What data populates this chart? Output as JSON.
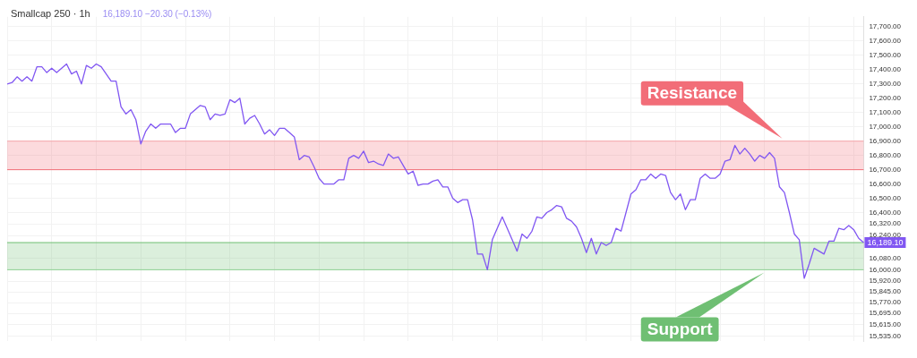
{
  "chart_data": {
    "type": "line",
    "title": "Smallcap 250 · 1h",
    "subtitle": "16,189.10 −20.30 (−0.13%)",
    "categories": [
      null,
      null,
      null,
      null,
      null,
      null,
      null,
      null,
      null,
      null,
      null,
      null,
      null,
      null,
      null,
      null,
      null,
      null,
      null,
      null,
      null,
      null,
      null,
      null,
      null,
      null,
      null,
      null,
      null,
      null,
      null,
      null,
      null,
      null,
      null,
      null,
      null,
      null,
      null,
      null,
      null,
      null,
      null,
      null,
      null,
      null,
      null,
      null,
      null,
      null,
      null,
      null,
      null,
      null,
      null,
      null,
      null,
      null,
      null,
      null,
      null,
      null,
      null,
      null,
      null,
      null,
      null,
      null,
      null,
      null,
      null,
      null,
      null,
      null,
      null,
      null,
      null,
      null,
      null,
      null,
      null,
      null,
      null,
      null,
      null,
      null,
      null,
      null,
      null,
      null,
      null,
      null,
      null,
      null,
      null,
      null,
      null,
      null,
      null,
      null,
      null,
      null,
      null,
      null,
      null,
      null,
      null,
      null,
      null,
      null,
      null,
      null,
      null,
      null,
      null,
      null,
      null,
      null,
      null,
      null,
      null,
      null,
      null,
      null,
      null,
      null,
      null,
      null,
      null,
      null,
      null,
      null,
      null,
      null,
      null,
      null,
      null,
      null,
      null,
      null,
      null,
      null,
      null,
      null,
      null,
      null,
      null,
      null,
      null,
      null,
      null,
      null,
      null,
      null,
      null,
      null,
      null,
      null,
      null,
      null,
      null,
      null,
      null,
      null,
      null,
      null,
      null,
      null,
      null,
      null,
      null,
      null,
      null,
      null
    ],
    "series": [
      {
        "color": "#8157f2",
        "values": [
          17300,
          17310,
          17350,
          17320,
          17350,
          17320,
          17420,
          17420,
          17380,
          17410,
          17380,
          17410,
          17440,
          17370,
          17390,
          17300,
          17430,
          17410,
          17440,
          17420,
          17370,
          17320,
          17320,
          17140,
          17090,
          17120,
          17050,
          16880,
          16970,
          17020,
          16990,
          17020,
          17020,
          17020,
          16960,
          16990,
          16990,
          17090,
          17120,
          17150,
          17140,
          17050,
          17090,
          17080,
          17090,
          17190,
          17170,
          17200,
          17020,
          17060,
          17080,
          17020,
          16950,
          16980,
          16940,
          16990,
          16990,
          16960,
          16930,
          16770,
          16800,
          16790,
          16720,
          16640,
          16600,
          16600,
          16600,
          16630,
          16630,
          16780,
          16800,
          16780,
          16830,
          16750,
          16760,
          16740,
          16730,
          16810,
          16780,
          16790,
          16730,
          16670,
          16690,
          16590,
          16600,
          16600,
          16620,
          16630,
          16580,
          16580,
          16500,
          16470,
          16490,
          16490,
          16350,
          16110,
          16110,
          16000,
          16210,
          16290,
          16370,
          16290,
          16210,
          16130,
          16250,
          16220,
          16270,
          16370,
          16360,
          16400,
          16420,
          16450,
          16440,
          16360,
          16340,
          16300,
          16220,
          16120,
          16220,
          16110,
          16190,
          16170,
          16190,
          16290,
          16270,
          16400,
          16530,
          16560,
          16630,
          16630,
          16670,
          16640,
          16670,
          16660,
          16540,
          16490,
          16530,
          16420,
          16490,
          16490,
          16640,
          16670,
          16640,
          16640,
          16670,
          16760,
          16770,
          16870,
          16810,
          16850,
          16810,
          16760,
          16800,
          16780,
          16820,
          16780,
          16580,
          16540,
          16400,
          16250,
          16210,
          15940,
          16040,
          16150,
          16130,
          16110,
          16200,
          16200,
          16290,
          16280,
          16310,
          16280,
          16220,
          16190
        ]
      }
    ],
    "ylim": [
      15500,
      17770
    ],
    "yticks": [
      {
        "value": 15535,
        "label": "15,535.00"
      },
      {
        "value": 15615,
        "label": "15,615.00"
      },
      {
        "value": 15695,
        "label": "15,695.00"
      },
      {
        "value": 15770,
        "label": "15,770.00"
      },
      {
        "value": 15845,
        "label": "15,845.00"
      },
      {
        "value": 15920,
        "label": "15,920.00"
      },
      {
        "value": 16000,
        "label": "16,000.00"
      },
      {
        "value": 16080,
        "label": "16,080.00"
      },
      {
        "value": 16240,
        "label": "16,240.00"
      },
      {
        "value": 16320,
        "label": "16,320.00"
      },
      {
        "value": 16400,
        "label": "16,400.00"
      },
      {
        "value": 16500,
        "label": "16,500.00"
      },
      {
        "value": 16600,
        "label": "16,600.00"
      },
      {
        "value": 16700,
        "label": "16,700.00"
      },
      {
        "value": 16800,
        "label": "16,800.00"
      },
      {
        "value": 16900,
        "label": "16,900.00"
      },
      {
        "value": 17000,
        "label": "17,000.00"
      },
      {
        "value": 17100,
        "label": "17,100.00"
      },
      {
        "value": 17200,
        "label": "17,200.00"
      },
      {
        "value": 17300,
        "label": "17,300.00"
      },
      {
        "value": 17400,
        "label": "17,400.00"
      },
      {
        "value": 17500,
        "label": "17,500.00"
      },
      {
        "value": 17600,
        "label": "17,600.00"
      },
      {
        "value": 17700,
        "label": "17,700.00"
      }
    ],
    "bands": [
      {
        "axis": "y",
        "from": 16700,
        "to": 16900,
        "label": "Resistance",
        "color": "#f26d78"
      },
      {
        "axis": "y",
        "from": 16000,
        "to": 16190,
        "label": "Support",
        "color": "#6fbf73"
      }
    ],
    "ref_lines": [
      {
        "axis": "y",
        "value": 16900,
        "color": "#f7a5ac"
      },
      {
        "axis": "y",
        "value": 16700,
        "color": "#f26d78"
      },
      {
        "axis": "y",
        "value": 16190,
        "color": "#6fbf73"
      },
      {
        "axis": "y",
        "value": 16000,
        "color": "#8fd193"
      }
    ],
    "annotations": [
      "16,189.10"
    ],
    "grid": true,
    "legend": false,
    "marker": "none",
    "line_style": "solid",
    "tick_labels": "y"
  }
}
